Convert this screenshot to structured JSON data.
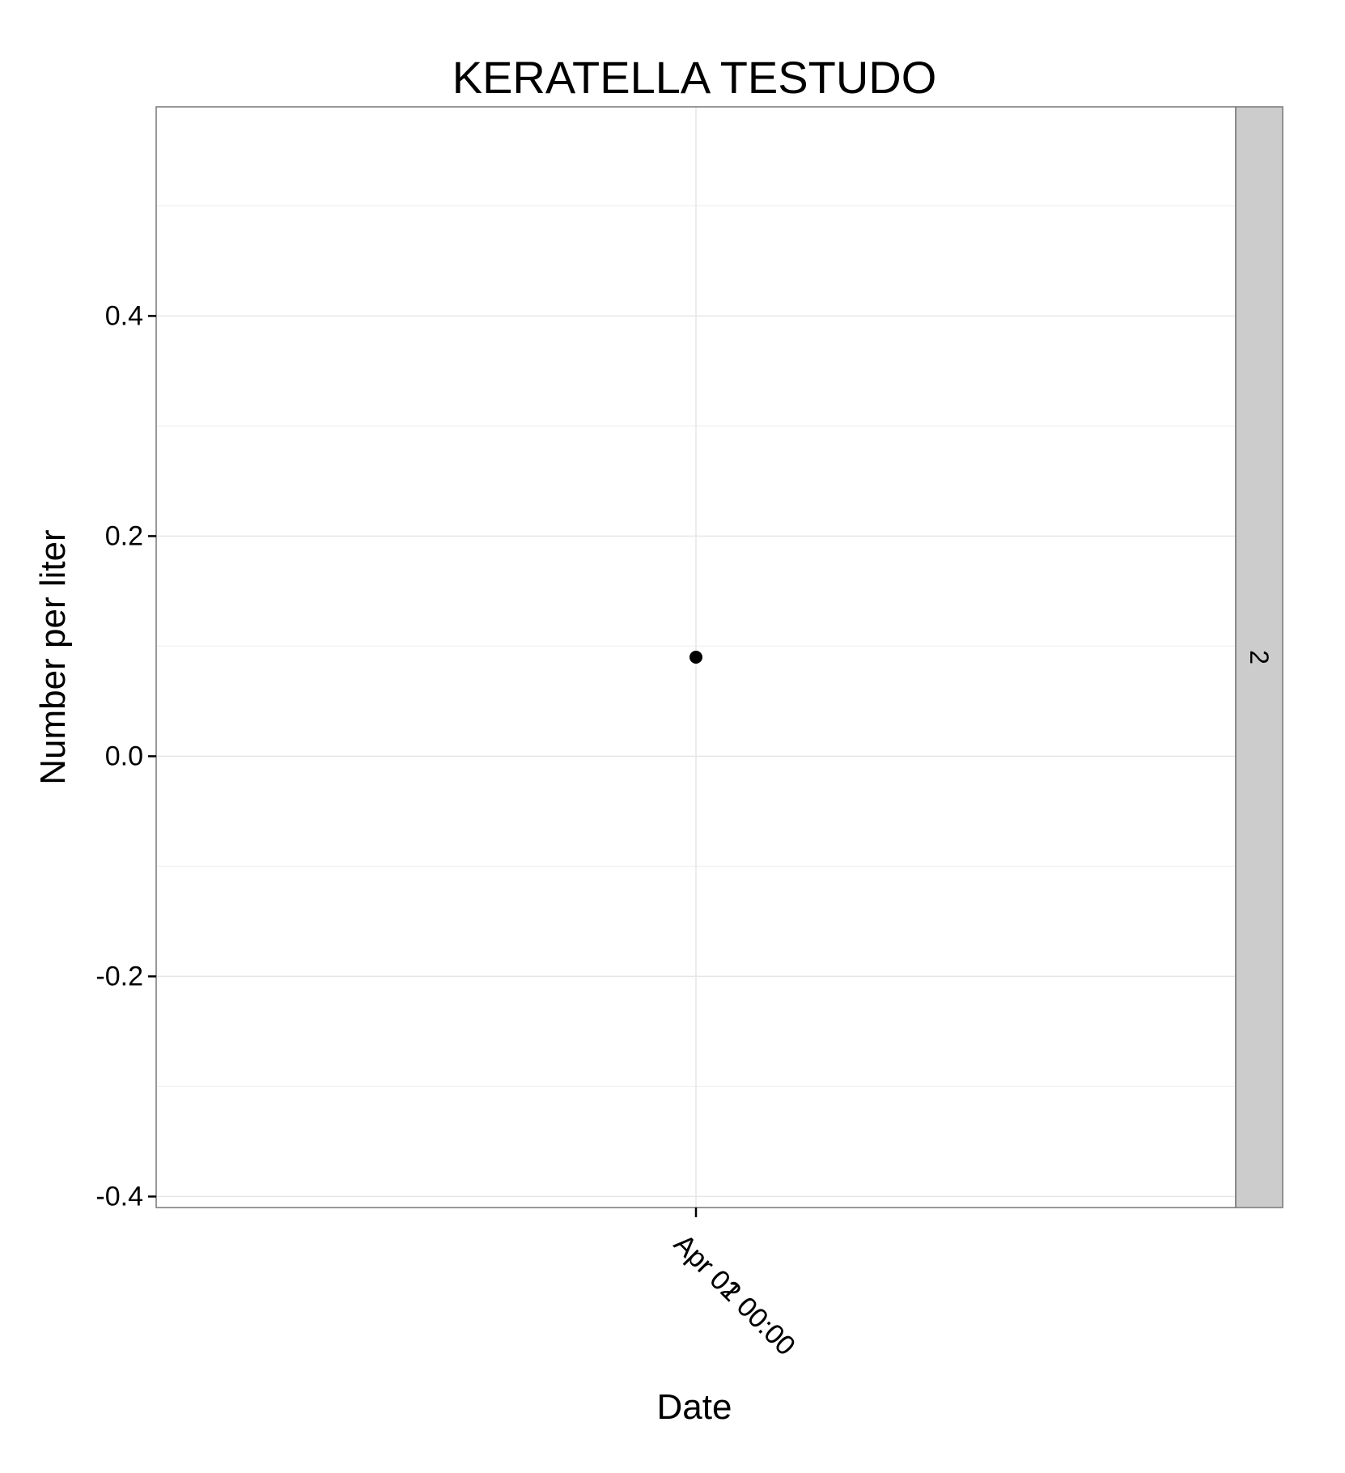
{
  "chart_data": {
    "type": "scatter",
    "title": "KERATELLA TESTUDO",
    "xlabel": "Date",
    "ylabel": "Number per liter",
    "x_tick_labels": [
      "Apr 01 00:00",
      "Apr 02 00:00"
    ],
    "y_ticks": [
      -0.4,
      -0.2,
      0.0,
      0.2,
      0.4
    ],
    "y_tick_labels": [
      "-0.4",
      "-0.2",
      "0.0",
      "0.2",
      "0.4"
    ],
    "ylim": [
      -0.41,
      0.59
    ],
    "facet_label": "2",
    "grid": true,
    "points": [
      {
        "x": "Apr 01 00:00",
        "y": 0.09
      }
    ],
    "point_color": "#000000",
    "facet_strip_color": "#cccccc"
  }
}
